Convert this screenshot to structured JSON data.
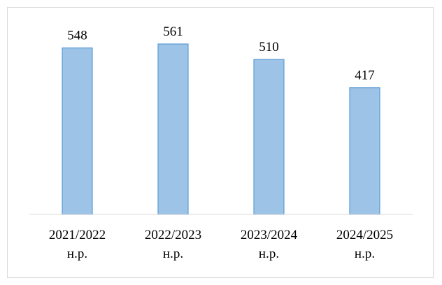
{
  "chart_data": {
    "type": "bar",
    "categories": [
      "2021/2022 н.р.",
      "2022/2023 н.р.",
      "2023/2024 н.р.",
      "2024/2025 н.р."
    ],
    "values": [
      548,
      561,
      510,
      417
    ],
    "color": "#9dc3e6",
    "ylim": [
      0,
      600
    ]
  }
}
